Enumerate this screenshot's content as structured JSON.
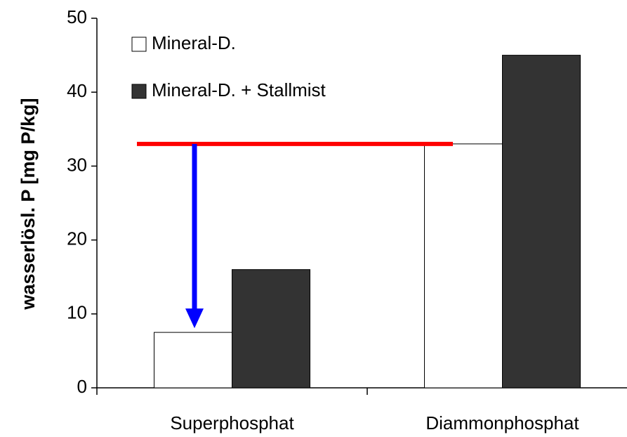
{
  "chart_data": {
    "type": "bar",
    "y_axis_label": "wasserlösl. P [mg P/kg]",
    "categories": [
      "Superphosphat",
      "Diammonphosphat"
    ],
    "series": [
      {
        "name": "Mineral-D.",
        "color": "#ffffff",
        "values": [
          7.5,
          33
        ]
      },
      {
        "name": "Mineral-D. + Stallmist",
        "color": "#333333",
        "values": [
          16,
          45
        ]
      }
    ],
    "ylim": [
      0,
      50
    ],
    "yticks": [
      0,
      10,
      20,
      30,
      40,
      50
    ],
    "grid": false,
    "legend": "upper left"
  }
}
